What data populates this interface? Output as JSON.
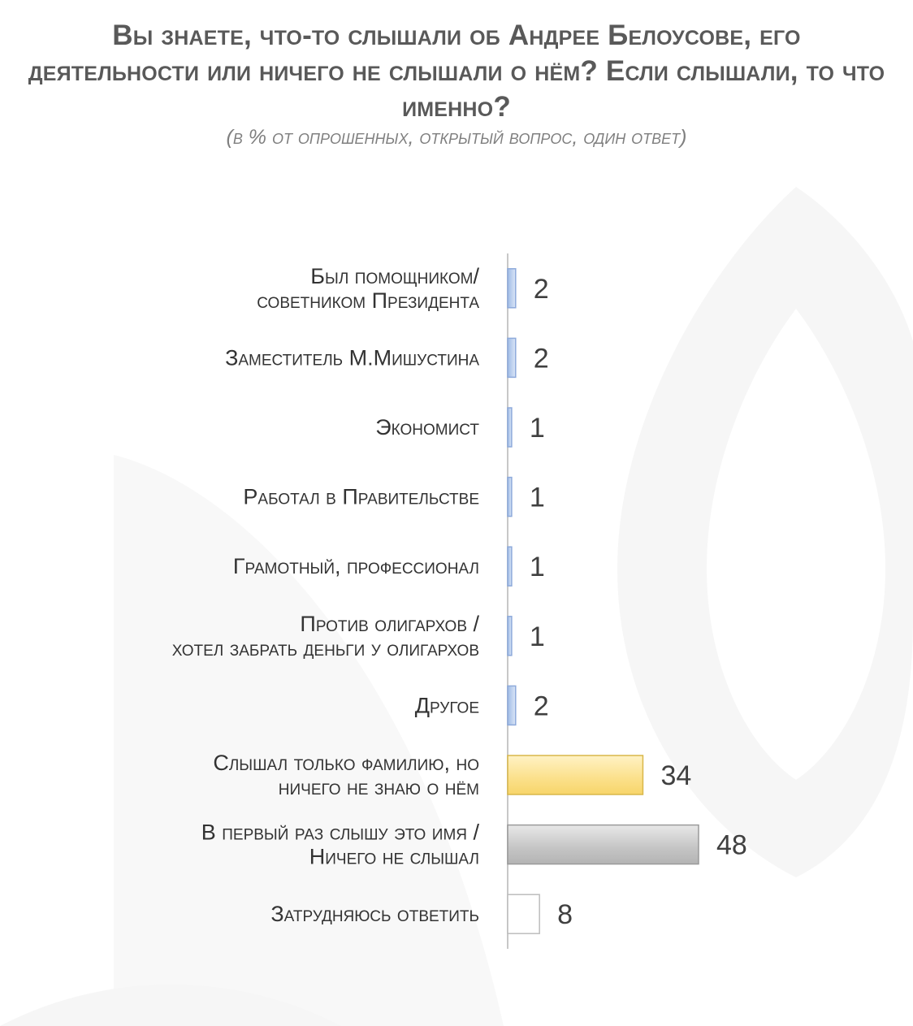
{
  "title": "Вы знаете, что-то слышали об Андрее Белоусове, его деятельности или ничего не слышали о нём? Если слышали, то что именно?",
  "subtitle": "(в % от опрошенных, открытый вопрос, один ответ)",
  "chart_data": {
    "type": "bar",
    "orientation": "horizontal",
    "categories": [
      [
        "Был помощником/",
        "советником Президента"
      ],
      [
        "Заместитель М.Мишустина"
      ],
      [
        "Экономист"
      ],
      [
        "Работал в Правительстве"
      ],
      [
        "Грамотный, профессионал"
      ],
      [
        "Против олигархов /",
        "хотел забрать деньги у олигархов"
      ],
      [
        "Другое"
      ],
      [
        "Слышал только фамилию, но",
        "ничего не знаю о нём"
      ],
      [
        "В первый раз слышу это имя /",
        "Ничего не слышал"
      ],
      [
        "Затрудняюсь ответить"
      ]
    ],
    "values": [
      2,
      2,
      1,
      1,
      1,
      1,
      2,
      34,
      48,
      8
    ],
    "value_labels": [
      "2",
      "2",
      "1",
      "1",
      "1",
      "1",
      "2",
      "34",
      "48",
      "8"
    ],
    "colors": [
      "#bcd0ee",
      "#bcd0ee",
      "#bcd0ee",
      "#bcd0ee",
      "#bcd0ee",
      "#bcd0ee",
      "#bcd0ee",
      "#fbe08a",
      "#c4c4c4",
      "#ffffff"
    ],
    "xlim": [
      0,
      55
    ],
    "grid": false,
    "legend": "none"
  }
}
